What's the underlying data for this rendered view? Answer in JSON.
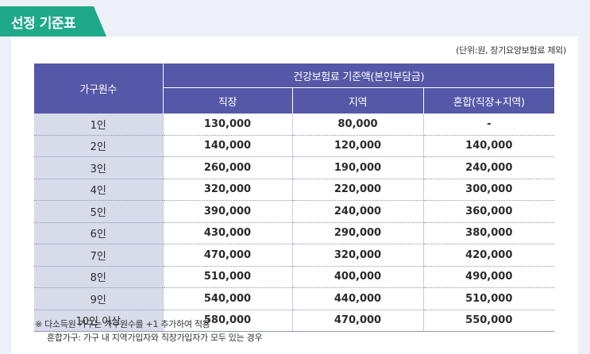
{
  "title": "선정 기준표",
  "unit_note": "(단위:원, 장기요양보험료 제외)",
  "table": {
    "household_header": "가구원수",
    "group_header": "건강보험료 기준액(본인부담금)",
    "sub_headers": [
      "직장",
      "지역",
      "혼합(직장+지역)"
    ],
    "rows": [
      {
        "household": "1인",
        "employee": "130,000",
        "regional": "80,000",
        "mixed": "-"
      },
      {
        "household": "2인",
        "employee": "140,000",
        "regional": "120,000",
        "mixed": "140,000"
      },
      {
        "household": "3인",
        "employee": "260,000",
        "regional": "190,000",
        "mixed": "240,000"
      },
      {
        "household": "4인",
        "employee": "320,000",
        "regional": "220,000",
        "mixed": "300,000"
      },
      {
        "household": "5인",
        "employee": "390,000",
        "regional": "240,000",
        "mixed": "360,000"
      },
      {
        "household": "6인",
        "employee": "430,000",
        "regional": "290,000",
        "mixed": "380,000"
      },
      {
        "household": "7인",
        "employee": "470,000",
        "regional": "320,000",
        "mixed": "420,000"
      },
      {
        "household": "8인",
        "employee": "510,000",
        "regional": "400,000",
        "mixed": "490,000"
      },
      {
        "household": "9인",
        "employee": "540,000",
        "regional": "440,000",
        "mixed": "510,000"
      },
      {
        "household": "10인 이상",
        "employee": "580,000",
        "regional": "470,000",
        "mixed": "550,000"
      }
    ]
  },
  "notes": {
    "line1": "※ 다소득원 가구는 가구원수를 +1 추가하여 적용",
    "line2": "혼합가구: 가구 내 지역가입자와 직장가입자가 모두 있는 경우"
  },
  "colors": {
    "accent_green": "#1fa98a",
    "header_purple": "#5557a7",
    "household_column": "#d8dbea"
  }
}
